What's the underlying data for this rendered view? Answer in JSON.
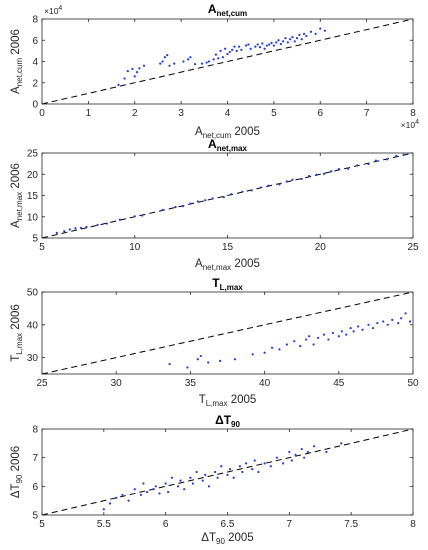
{
  "colors": {
    "points": "#1f3bd6",
    "identity_line": "#000000",
    "axes": "#262626"
  },
  "chart_data": [
    {
      "type": "scatter",
      "title": "A",
      "title_sub": "net,cum",
      "xlabel": "A",
      "xlabel_sub": "net,cum",
      "xlabel_suffix": " 2005",
      "ylabel": "A",
      "ylabel_sub": "net,cum",
      "ylabel_suffix": " 2006",
      "xlim": [
        0,
        80000
      ],
      "ylim": [
        0,
        80000
      ],
      "xticks": [
        0,
        10000,
        20000,
        30000,
        40000,
        50000,
        60000,
        70000,
        80000
      ],
      "xtick_labels": [
        "0",
        "1",
        "2",
        "3",
        "4",
        "5",
        "6",
        "7",
        "8"
      ],
      "yticks": [
        0,
        20000,
        40000,
        60000,
        80000
      ],
      "ytick_labels": [
        "0",
        "2",
        "4",
        "6",
        "8"
      ],
      "x_multiplier_base": "×10",
      "x_multiplier_exp": "4",
      "y_multiplier_base": "×10",
      "y_multiplier_exp": "4",
      "reference_line": "y = x (dashed)",
      "points": [
        [
          16500,
          18000
        ],
        [
          17800,
          24000
        ],
        [
          18500,
          31000
        ],
        [
          19500,
          33000
        ],
        [
          20000,
          26000
        ],
        [
          20500,
          30000
        ],
        [
          21000,
          33500
        ],
        [
          22000,
          36000
        ],
        [
          25500,
          38000
        ],
        [
          26000,
          40000
        ],
        [
          26500,
          44000
        ],
        [
          27000,
          46000
        ],
        [
          27500,
          36000
        ],
        [
          28500,
          38000
        ],
        [
          30500,
          40000
        ],
        [
          31500,
          42000
        ],
        [
          32000,
          44000
        ],
        [
          33000,
          37500
        ],
        [
          34500,
          38000
        ],
        [
          35500,
          39000
        ],
        [
          36000,
          40000
        ],
        [
          37000,
          42000
        ],
        [
          37500,
          46500
        ],
        [
          38000,
          43000
        ],
        [
          38500,
          50000
        ],
        [
          39000,
          44000
        ],
        [
          39500,
          52000
        ],
        [
          40000,
          47000
        ],
        [
          40500,
          49000
        ],
        [
          41000,
          51000
        ],
        [
          41500,
          54000
        ],
        [
          42000,
          50000
        ],
        [
          42500,
          54000
        ],
        [
          43000,
          51000
        ],
        [
          44000,
          55000
        ],
        [
          44500,
          56000
        ],
        [
          45000,
          52000
        ],
        [
          46000,
          54000
        ],
        [
          46500,
          56000
        ],
        [
          47000,
          53500
        ],
        [
          47500,
          57000
        ],
        [
          48000,
          52000
        ],
        [
          48500,
          55000
        ],
        [
          49000,
          56000
        ],
        [
          49500,
          57500
        ],
        [
          50000,
          55000
        ],
        [
          50500,
          58000
        ],
        [
          51000,
          60000
        ],
        [
          51500,
          56500
        ],
        [
          52000,
          59000
        ],
        [
          52500,
          62000
        ],
        [
          53000,
          58000
        ],
        [
          53500,
          61000
        ],
        [
          54000,
          63000
        ],
        [
          54500,
          59000
        ],
        [
          55000,
          62000
        ],
        [
          55500,
          65000
        ],
        [
          56000,
          61000
        ],
        [
          56500,
          66000
        ],
        [
          57000,
          64000
        ],
        [
          58000,
          68000
        ],
        [
          59000,
          66000
        ],
        [
          60000,
          71000
        ],
        [
          61000,
          69000
        ]
      ]
    },
    {
      "type": "scatter",
      "title": "A",
      "title_sub": "net,max",
      "xlabel": "A",
      "xlabel_sub": "net,max",
      "xlabel_suffix": " 2005",
      "ylabel": "A",
      "ylabel_sub": "net,max",
      "ylabel_suffix": " 2006",
      "xlim": [
        5,
        25
      ],
      "ylim": [
        5,
        25
      ],
      "xticks": [
        5,
        10,
        15,
        20,
        25
      ],
      "xtick_labels": [
        "5",
        "10",
        "15",
        "20",
        "25"
      ],
      "yticks": [
        5,
        10,
        15,
        20,
        25
      ],
      "ytick_labels": [
        "5",
        "10",
        "15",
        "20",
        "25"
      ],
      "reference_line": "y = x (dashed)",
      "points": [
        [
          5.8,
          6.2
        ],
        [
          6.2,
          6.6
        ],
        [
          6.5,
          7.0
        ],
        [
          6.8,
          7.3
        ],
        [
          7.1,
          7.4
        ],
        [
          7.4,
          7.6
        ],
        [
          8.0,
          8.1
        ],
        [
          8.5,
          8.4
        ],
        [
          9.2,
          9.3
        ],
        [
          10.0,
          10.1
        ],
        [
          10.4,
          10.3
        ],
        [
          11.5,
          11.6
        ],
        [
          12.2,
          12.3
        ],
        [
          12.6,
          12.5
        ],
        [
          13.0,
          13.1
        ],
        [
          13.4,
          13.6
        ],
        [
          13.8,
          13.9
        ],
        [
          14.2,
          14.3
        ],
        [
          14.8,
          14.6
        ],
        [
          15.2,
          15.3
        ],
        [
          15.8,
          15.9
        ],
        [
          16.3,
          16.2
        ],
        [
          16.8,
          16.9
        ],
        [
          17.2,
          17.3
        ],
        [
          17.8,
          17.6
        ],
        [
          18.2,
          18.3
        ],
        [
          18.5,
          18.7
        ],
        [
          19.0,
          18.9
        ],
        [
          19.4,
          19.6
        ],
        [
          19.8,
          19.9
        ],
        [
          20.2,
          20.1
        ],
        [
          20.6,
          20.7
        ],
        [
          21.0,
          21.2
        ],
        [
          21.5,
          21.3
        ],
        [
          22.0,
          22.1
        ],
        [
          22.6,
          22.4
        ],
        [
          23.0,
          23.2
        ],
        [
          23.6,
          23.5
        ],
        [
          24.1,
          24.3
        ],
        [
          24.5,
          24.6
        ]
      ]
    },
    {
      "type": "scatter",
      "title": "T",
      "title_sub": "L,max",
      "xlabel": "T",
      "xlabel_sub": "L,max",
      "xlabel_suffix": " 2005",
      "ylabel": "T",
      "ylabel_sub": "L,max",
      "ylabel_suffix": " 2006",
      "xlim": [
        25,
        50
      ],
      "ylim": [
        25,
        50
      ],
      "xticks": [
        25,
        30,
        35,
        40,
        45,
        50
      ],
      "xtick_labels": [
        "25",
        "30",
        "35",
        "40",
        "45",
        "50"
      ],
      "yticks": [
        30,
        40,
        50
      ],
      "ytick_labels": [
        "30",
        "40",
        "50"
      ],
      "reference_line": "y = x (dashed)",
      "points": [
        [
          33.6,
          28.0
        ],
        [
          34.8,
          27.0
        ],
        [
          35.5,
          29.5
        ],
        [
          35.7,
          30.5
        ],
        [
          36.2,
          28.5
        ],
        [
          37.0,
          29.0
        ],
        [
          38.0,
          29.5
        ],
        [
          39.2,
          31.0
        ],
        [
          40.0,
          31.5
        ],
        [
          40.5,
          33.0
        ],
        [
          41.0,
          32.5
        ],
        [
          41.5,
          34.0
        ],
        [
          42.0,
          35.0
        ],
        [
          42.4,
          33.5
        ],
        [
          42.8,
          35.5
        ],
        [
          43.0,
          36.5
        ],
        [
          43.3,
          34.0
        ],
        [
          43.6,
          36.0
        ],
        [
          44.0,
          37.0
        ],
        [
          44.3,
          35.5
        ],
        [
          44.6,
          37.5
        ],
        [
          45.0,
          36.5
        ],
        [
          45.2,
          38.0
        ],
        [
          45.5,
          37.0
        ],
        [
          45.8,
          39.0
        ],
        [
          46.0,
          38.0
        ],
        [
          46.3,
          39.5
        ],
        [
          46.6,
          38.5
        ],
        [
          47.0,
          40.0
        ],
        [
          47.3,
          39.0
        ],
        [
          47.6,
          40.5
        ],
        [
          48.0,
          41.0
        ],
        [
          48.3,
          40.0
        ],
        [
          48.6,
          41.5
        ],
        [
          49.0,
          40.5
        ],
        [
          49.2,
          42.0
        ],
        [
          49.5,
          43.5
        ],
        [
          49.8,
          41.0
        ]
      ]
    },
    {
      "type": "scatter",
      "title": "ΔT",
      "title_sub": "90",
      "xlabel": "ΔT",
      "xlabel_sub": "90",
      "xlabel_suffix": " 2005",
      "ylabel": "ΔT",
      "ylabel_sub": "90",
      "ylabel_suffix": " 2006",
      "xlim": [
        5,
        8
      ],
      "ylim": [
        5,
        8
      ],
      "xticks": [
        5,
        5.5,
        6,
        6.5,
        7,
        7.5,
        8
      ],
      "xtick_labels": [
        "5",
        "5.5",
        "6",
        "6.5",
        "7",
        "7.5",
        "8"
      ],
      "yticks": [
        5,
        6,
        7,
        8
      ],
      "ytick_labels": [
        "5",
        "6",
        "7",
        "8"
      ],
      "reference_line": "y = x (dashed)",
      "points": [
        [
          5.5,
          5.2
        ],
        [
          5.55,
          5.4
        ],
        [
          5.6,
          5.6
        ],
        [
          5.65,
          5.7
        ],
        [
          5.7,
          5.5
        ],
        [
          5.75,
          5.9
        ],
        [
          5.8,
          5.7
        ],
        [
          5.82,
          6.1
        ],
        [
          5.85,
          5.8
        ],
        [
          5.9,
          5.9
        ],
        [
          5.92,
          6.0
        ],
        [
          5.95,
          5.75
        ],
        [
          6.0,
          6.1
        ],
        [
          6.02,
          5.8
        ],
        [
          6.05,
          6.3
        ],
        [
          6.1,
          6.0
        ],
        [
          6.12,
          6.2
        ],
        [
          6.15,
          5.9
        ],
        [
          6.2,
          6.3
        ],
        [
          6.22,
          6.1
        ],
        [
          6.25,
          6.5
        ],
        [
          6.3,
          6.2
        ],
        [
          6.32,
          6.4
        ],
        [
          6.35,
          6.0
        ],
        [
          6.4,
          6.5
        ],
        [
          6.42,
          6.3
        ],
        [
          6.45,
          6.7
        ],
        [
          6.5,
          6.4
        ],
        [
          6.52,
          6.6
        ],
        [
          6.55,
          6.3
        ],
        [
          6.6,
          6.7
        ],
        [
          6.62,
          6.5
        ],
        [
          6.65,
          6.8
        ],
        [
          6.7,
          6.6
        ],
        [
          6.72,
          6.9
        ],
        [
          6.75,
          6.5
        ],
        [
          6.8,
          6.8
        ],
        [
          6.85,
          6.7
        ],
        [
          6.9,
          7.0
        ],
        [
          6.95,
          6.8
        ],
        [
          7.0,
          7.2
        ],
        [
          7.02,
          6.9
        ],
        [
          7.05,
          7.1
        ],
        [
          7.1,
          7.3
        ],
        [
          7.12,
          7.0
        ],
        [
          7.15,
          7.2
        ],
        [
          7.2,
          7.4
        ],
        [
          7.3,
          7.2
        ],
        [
          7.42,
          7.5
        ]
      ]
    }
  ]
}
